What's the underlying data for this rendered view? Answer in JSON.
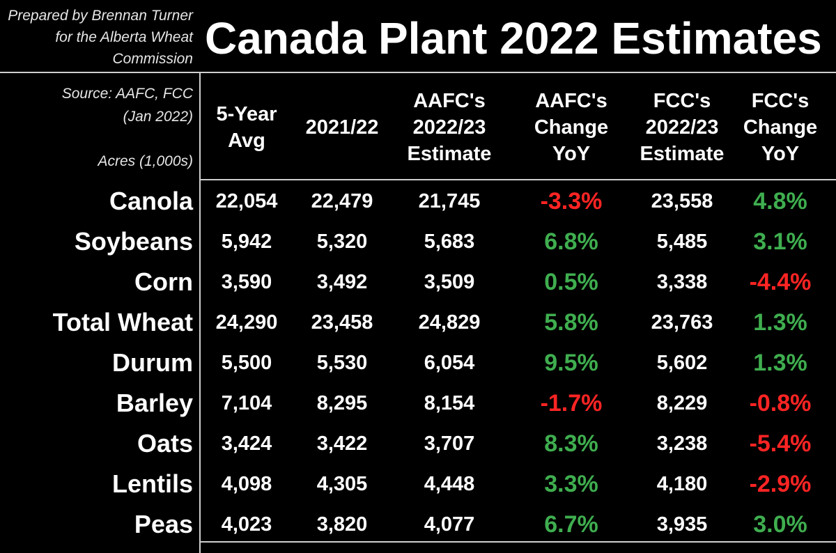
{
  "credit": {
    "lines": [
      "Prepared by Brennan Turner",
      "for the Alberta Wheat",
      "Commission"
    ]
  },
  "colors": {
    "background": "#000000",
    "text": "#ffffff",
    "positive": "#3fae4f",
    "negative": "#ff2424"
  },
  "chart_data": {
    "type": "table",
    "title": "Canada Plant 2022 Estimates",
    "source_lines": [
      "Source: AAFC, FCC",
      "(Jan 2022)"
    ],
    "units": "Acres (1,000s)",
    "columns": [
      {
        "header_lines": [
          "5-Year",
          "Avg"
        ]
      },
      {
        "header_lines": [
          "2021/22"
        ]
      },
      {
        "header_lines": [
          "AAFC's",
          "2022/23",
          "Estimate"
        ]
      },
      {
        "header_lines": [
          "AAFC's",
          "Change",
          "YoY"
        ]
      },
      {
        "header_lines": [
          "FCC's",
          "2022/23",
          "Estimate"
        ]
      },
      {
        "header_lines": [
          "FCC's",
          "Change",
          "YoY"
        ]
      }
    ],
    "rows": [
      {
        "label": "Canola",
        "values": [
          "22,054",
          "22,479",
          "21,745",
          "-3.3%",
          "23,558",
          "4.8%"
        ]
      },
      {
        "label": "Soybeans",
        "values": [
          "5,942",
          "5,320",
          "5,683",
          "6.8%",
          "5,485",
          "3.1%"
        ]
      },
      {
        "label": "Corn",
        "values": [
          "3,590",
          "3,492",
          "3,509",
          "0.5%",
          "3,338",
          "-4.4%"
        ]
      },
      {
        "label": "Total Wheat",
        "values": [
          "24,290",
          "23,458",
          "24,829",
          "5.8%",
          "23,763",
          "1.3%"
        ]
      },
      {
        "label": "Durum",
        "values": [
          "5,500",
          "5,530",
          "6,054",
          "9.5%",
          "5,602",
          "1.3%"
        ]
      },
      {
        "label": "Barley",
        "values": [
          "7,104",
          "8,295",
          "8,154",
          "-1.7%",
          "8,229",
          "-0.8%"
        ]
      },
      {
        "label": "Oats",
        "values": [
          "3,424",
          "3,422",
          "3,707",
          "8.3%",
          "3,238",
          "-5.4%"
        ]
      },
      {
        "label": "Lentils",
        "values": [
          "4,098",
          "4,305",
          "4,448",
          "3.3%",
          "4,180",
          "-2.9%"
        ]
      },
      {
        "label": "Peas",
        "values": [
          "4,023",
          "3,820",
          "4,077",
          "6.7%",
          "3,935",
          "3.0%"
        ]
      }
    ]
  }
}
